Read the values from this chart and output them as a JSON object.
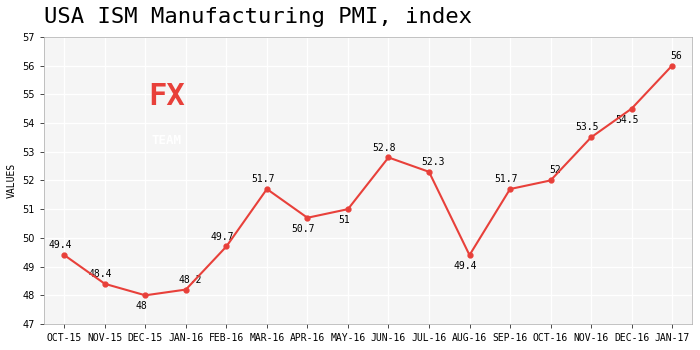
{
  "title": "USA ISM Manufacturing PMI, index",
  "xlabel": "",
  "ylabel": "VALUES",
  "x_labels": [
    "OCT-15",
    "NOV-15",
    "DEC-15",
    "JAN-16",
    "FEB-16",
    "MAR-16",
    "APR-16",
    "MAY-16",
    "JUN-16",
    "JUL-16",
    "AUG-16",
    "SEP-16",
    "OCT-16",
    "NOV-16",
    "DEC-16",
    "JAN-17"
  ],
  "y_values": [
    49.4,
    48.4,
    48.0,
    48.2,
    49.7,
    51.7,
    50.7,
    51.0,
    52.8,
    52.3,
    49.4,
    51.7,
    52.0,
    53.5,
    54.5,
    56.0
  ],
  "ylim": [
    47,
    57
  ],
  "yticks": [
    47,
    48,
    49,
    50,
    51,
    52,
    53,
    54,
    55,
    56,
    57
  ],
  "line_color": "#e8403a",
  "marker_color": "#e8403a",
  "bg_color": "#ffffff",
  "plot_bg_color": "#f5f5f5",
  "grid_color": "#ffffff",
  "title_fontsize": 16,
  "label_fontsize": 7,
  "ylabel_fontsize": 7,
  "annotation_fontsize": 7,
  "logo_bg_color": "#757575",
  "logo_fx_color": "#e8403a",
  "logo_team_color": "#ffffff"
}
